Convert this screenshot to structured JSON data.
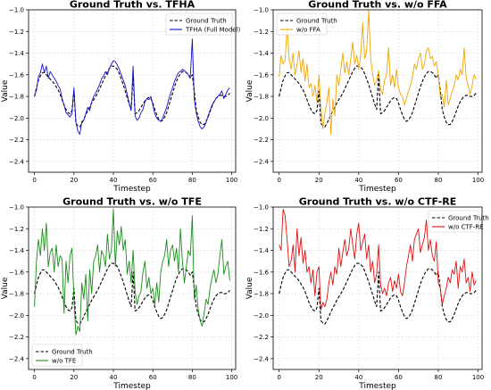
{
  "figure": {
    "background": "#ffffff"
  },
  "chart_data": [
    {
      "type": "line",
      "title": "Ground Truth vs. TFHA",
      "xlabel": "Timestep",
      "ylabel": "Value",
      "xlim": [
        -3,
        102
      ],
      "ylim": [
        -2.5,
        -1.0
      ],
      "xticks": [
        0,
        20,
        40,
        60,
        80,
        100
      ],
      "yticks": [
        -2.4,
        -2.2,
        -2.0,
        -1.8,
        -1.6,
        -1.4,
        -1.2,
        -1.0
      ],
      "grid": true,
      "legend_position": "top-right",
      "series": [
        {
          "name": "Ground Truth",
          "color": "#000000",
          "dashed": true,
          "role": "gt"
        },
        {
          "name": "TFHA (Full Model)",
          "color": "#1010d0",
          "dashed": false,
          "role": "pred",
          "values": [
            -1.8,
            -1.74,
            -1.62,
            -1.58,
            -1.5,
            -1.58,
            -1.52,
            -1.63,
            -1.57,
            -1.6,
            -1.63,
            -1.66,
            -1.7,
            -1.73,
            -1.82,
            -1.88,
            -1.95,
            -1.97,
            -1.99,
            -1.96,
            -1.72,
            -2.04,
            -2.12,
            -2.15,
            -2.03,
            -2.02,
            -1.96,
            -1.9,
            -1.93,
            -1.85,
            -1.8,
            -1.77,
            -1.73,
            -1.69,
            -1.64,
            -1.61,
            -1.57,
            -1.6,
            -1.54,
            -1.5,
            -1.47,
            -1.48,
            -1.51,
            -1.55,
            -1.6,
            -1.65,
            -1.7,
            -1.78,
            -1.86,
            -1.93,
            -1.52,
            -1.98,
            -2.02,
            -2.0,
            -1.95,
            -1.92,
            -1.85,
            -1.82,
            -1.83,
            -1.8,
            -1.88,
            -1.96,
            -2.0,
            -2.02,
            -2.03,
            -2.0,
            -1.95,
            -1.9,
            -1.83,
            -1.77,
            -1.72,
            -1.66,
            -1.62,
            -1.58,
            -1.57,
            -1.55,
            -1.56,
            -1.58,
            -1.6,
            -1.62,
            -1.27,
            -1.82,
            -1.95,
            -2.03,
            -2.08,
            -2.1,
            -2.08,
            -2.04,
            -1.98,
            -1.93,
            -1.88,
            -1.85,
            -1.82,
            -1.8,
            -1.78,
            -1.75,
            -1.82,
            -1.78,
            -1.74,
            -1.72
          ]
        }
      ]
    },
    {
      "type": "line",
      "title": "Ground Truth vs. w/o FFA",
      "xlabel": "Timestep",
      "ylabel": "Value",
      "xlim": [
        -3,
        102
      ],
      "ylim": [
        -2.5,
        -1.0
      ],
      "xticks": [
        0,
        20,
        40,
        60,
        80,
        100
      ],
      "yticks": [
        -2.4,
        -2.2,
        -2.0,
        -1.8,
        -1.6,
        -1.4,
        -1.2,
        -1.0
      ],
      "grid": true,
      "legend_position": "top-left",
      "series": [
        {
          "name": "Ground Truth",
          "color": "#000000",
          "dashed": true,
          "role": "gt"
        },
        {
          "name": "w/o FFA",
          "color": "#f0a500",
          "dashed": false,
          "role": "pred",
          "values": [
            -1.62,
            -1.42,
            -1.5,
            -1.47,
            -1.15,
            -1.45,
            -1.55,
            -1.4,
            -1.6,
            -1.5,
            -1.38,
            -1.58,
            -1.45,
            -1.66,
            -1.5,
            -1.72,
            -1.68,
            -1.8,
            -1.7,
            -1.85,
            -1.6,
            -1.9,
            -2.1,
            -1.95,
            -1.85,
            -1.72,
            -2.15,
            -1.82,
            -1.98,
            -1.6,
            -1.7,
            -1.55,
            -1.4,
            -1.58,
            -1.48,
            -1.6,
            -1.45,
            -1.3,
            -1.5,
            -1.42,
            -1.55,
            -1.42,
            -1.12,
            -1.45,
            -1.38,
            -1.0,
            -1.45,
            -1.6,
            -1.7,
            -1.65,
            -1.56,
            -1.73,
            -1.78,
            -1.65,
            -1.6,
            -1.35,
            -1.7,
            -1.6,
            -1.72,
            -1.55,
            -1.72,
            -1.78,
            -1.8,
            -1.88,
            -1.82,
            -1.75,
            -1.7,
            -1.62,
            -1.5,
            -1.55,
            -1.45,
            -1.4,
            -1.55,
            -1.5,
            -1.38,
            -1.35,
            -1.45,
            -1.43,
            -1.52,
            -1.48,
            -1.6,
            -1.8,
            -1.78,
            -1.9,
            -1.65,
            -1.88,
            -1.82,
            -1.75,
            -1.7,
            -1.6,
            -1.65,
            -1.55,
            -1.6,
            -1.35,
            -1.62,
            -1.7,
            -1.78,
            -1.7,
            -1.6,
            -1.64
          ]
        }
      ]
    },
    {
      "type": "line",
      "title": "Ground Truth vs. w/o TFE",
      "xlabel": "Timestep",
      "ylabel": "Value",
      "xlim": [
        -3,
        102
      ],
      "ylim": [
        -2.5,
        -1.0
      ],
      "xticks": [
        0,
        20,
        40,
        60,
        80,
        100
      ],
      "yticks": [
        -2.4,
        -2.2,
        -2.0,
        -1.8,
        -1.6,
        -1.4,
        -1.2,
        -1.0
      ],
      "grid": true,
      "legend_position": "bottom-left",
      "series": [
        {
          "name": "Ground Truth",
          "color": "#000000",
          "dashed": true,
          "role": "gt"
        },
        {
          "name": "w/o TFE",
          "color": "#1a8c1a",
          "dashed": false,
          "role": "pred",
          "values": [
            -1.92,
            -1.5,
            -1.3,
            -1.45,
            -1.2,
            -1.4,
            -1.15,
            -1.55,
            -1.42,
            -1.38,
            -1.6,
            -1.35,
            -1.55,
            -1.45,
            -1.48,
            -1.98,
            -1.5,
            -1.7,
            -1.45,
            -1.38,
            -1.85,
            -2.18,
            -2.1,
            -2.15,
            -1.7,
            -1.85,
            -1.62,
            -2.05,
            -1.58,
            -1.8,
            -1.5,
            -1.45,
            -1.35,
            -1.6,
            -1.4,
            -1.45,
            -1.55,
            -1.25,
            -1.48,
            -1.4,
            -1.02,
            -1.55,
            -1.22,
            -1.35,
            -1.18,
            -1.4,
            -1.3,
            -1.62,
            -1.5,
            -1.7,
            -1.4,
            -1.78,
            -1.9,
            -1.82,
            -1.78,
            -1.6,
            -1.5,
            -1.75,
            -1.65,
            -1.8,
            -1.75,
            -1.9,
            -1.7,
            -1.88,
            -1.6,
            -1.5,
            -1.45,
            -1.3,
            -1.55,
            -1.4,
            -1.35,
            -1.5,
            -1.38,
            -1.6,
            -1.2,
            -1.5,
            -1.7,
            -1.55,
            -1.4,
            -1.45,
            -1.08,
            -1.85,
            -1.72,
            -1.95,
            -2.05,
            -2.1,
            -1.98,
            -1.85,
            -1.9,
            -1.75,
            -1.65,
            -1.58,
            -1.7,
            -1.62,
            -1.45,
            -1.3,
            -1.62,
            -1.55,
            -1.5,
            -1.68
          ]
        }
      ]
    },
    {
      "type": "line",
      "title": "Ground Truth vs. w/o CTF-RE",
      "xlabel": "Timestep",
      "ylabel": "Value",
      "xlim": [
        -3,
        102
      ],
      "ylim": [
        -2.5,
        -1.0
      ],
      "xticks": [
        0,
        20,
        40,
        60,
        80,
        100
      ],
      "yticks": [
        -2.4,
        -2.2,
        -2.0,
        -1.8,
        -1.6,
        -1.4,
        -1.2,
        -1.0
      ],
      "grid": true,
      "legend_position": "top-right",
      "series": [
        {
          "name": "Ground Truth",
          "color": "#000000",
          "dashed": true,
          "role": "gt"
        },
        {
          "name": "w/o CTF-RE",
          "color": "#e01010",
          "dashed": false,
          "role": "pred",
          "values": [
            -1.35,
            -1.4,
            -1.02,
            -1.08,
            -1.3,
            -1.55,
            -1.5,
            -1.35,
            -1.6,
            -1.2,
            -1.45,
            -1.28,
            -1.52,
            -1.4,
            -1.6,
            -1.55,
            -1.7,
            -1.58,
            -1.82,
            -1.6,
            -1.55,
            -1.95,
            -1.88,
            -1.92,
            -1.85,
            -1.7,
            -1.6,
            -1.72,
            -1.55,
            -1.62,
            -1.38,
            -1.55,
            -1.42,
            -1.3,
            -1.45,
            -1.38,
            -1.2,
            -1.35,
            -1.48,
            -1.25,
            -1.15,
            -1.4,
            -1.32,
            -1.25,
            -1.48,
            -1.35,
            -1.6,
            -1.5,
            -1.7,
            -1.62,
            -1.35,
            -1.72,
            -1.8,
            -1.75,
            -1.82,
            -1.7,
            -1.65,
            -1.78,
            -1.68,
            -1.75,
            -1.62,
            -1.78,
            -1.82,
            -1.7,
            -1.55,
            -1.45,
            -1.35,
            -1.5,
            -1.3,
            -1.25,
            -1.2,
            -1.42,
            -1.35,
            -1.28,
            -1.12,
            -1.4,
            -1.3,
            -1.45,
            -1.5,
            -1.32,
            -1.7,
            -1.75,
            -1.9,
            -1.82,
            -1.75,
            -1.65,
            -1.7,
            -1.58,
            -1.62,
            -1.5,
            -1.75,
            -1.55,
            -1.6,
            -1.48,
            -1.7,
            -1.65,
            -1.78,
            -1.6,
            -1.72,
            -1.68
          ]
        }
      ]
    }
  ],
  "ground_truth_values": [
    -1.8,
    -1.72,
    -1.65,
    -1.61,
    -1.58,
    -1.58,
    -1.6,
    -1.62,
    -1.64,
    -1.66,
    -1.68,
    -1.71,
    -1.74,
    -1.78,
    -1.83,
    -1.88,
    -1.92,
    -1.95,
    -1.96,
    -1.93,
    -1.75,
    -2.05,
    -2.07,
    -2.08,
    -2.05,
    -2.01,
    -1.97,
    -1.93,
    -1.9,
    -1.86,
    -1.83,
    -1.8,
    -1.77,
    -1.73,
    -1.69,
    -1.65,
    -1.61,
    -1.57,
    -1.54,
    -1.52,
    -1.52,
    -1.53,
    -1.55,
    -1.59,
    -1.64,
    -1.69,
    -1.75,
    -1.81,
    -1.87,
    -1.92,
    -1.6,
    -1.96,
    -1.95,
    -1.93,
    -1.9,
    -1.87,
    -1.84,
    -1.82,
    -1.81,
    -1.82,
    -1.86,
    -1.92,
    -1.97,
    -2.01,
    -2.03,
    -2.02,
    -1.99,
    -1.95,
    -1.89,
    -1.83,
    -1.77,
    -1.71,
    -1.66,
    -1.62,
    -1.59,
    -1.57,
    -1.57,
    -1.58,
    -1.6,
    -1.63,
    -1.6,
    -1.75,
    -1.92,
    -1.99,
    -2.04,
    -2.06,
    -2.06,
    -2.03,
    -1.99,
    -1.94,
    -1.89,
    -1.85,
    -1.82,
    -1.8,
    -1.79,
    -1.79,
    -1.8,
    -1.8,
    -1.79,
    -1.77
  ]
}
